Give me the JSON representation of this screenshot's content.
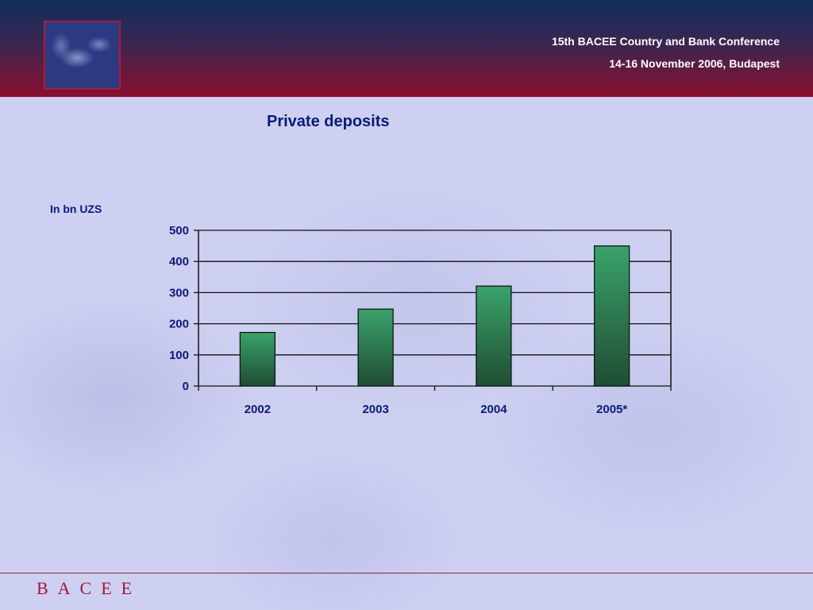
{
  "header": {
    "conference_title": "15th BACEE Country and Bank Conference",
    "conference_date": "14-16 November 2006, Budapest"
  },
  "slide": {
    "title": "Private deposits",
    "unit_label": "In bn UZS"
  },
  "footer": {
    "logo_text": "BACEE"
  },
  "colors": {
    "bar_top": "#3aa36a",
    "bar_bottom": "#1f4d33",
    "title_text": "#0a1a7a",
    "header_top": "#0f2d5e",
    "header_bottom": "#8a0f2d"
  },
  "chart_data": {
    "type": "bar",
    "categories": [
      "2002",
      "2003",
      "2004",
      "2005*"
    ],
    "values": [
      172,
      247,
      321,
      450
    ],
    "title": "",
    "xlabel": "",
    "ylabel": "",
    "ylim": [
      0,
      500
    ],
    "yticks": [
      0,
      100,
      200,
      300,
      400,
      500
    ],
    "grid": true,
    "legend": "none"
  }
}
